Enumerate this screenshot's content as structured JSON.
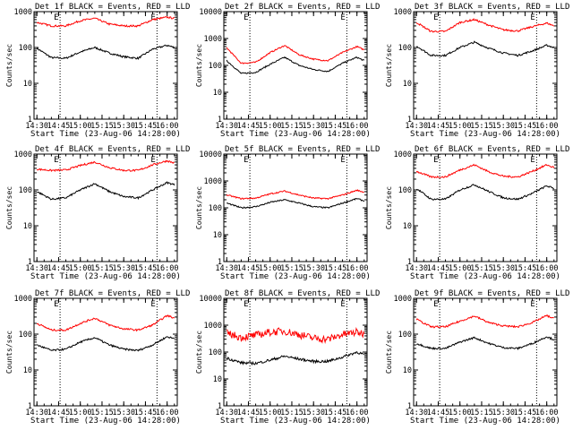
{
  "colors": {
    "events": "#000000",
    "lld": "#ff0000",
    "axes": "#000000",
    "background": "#ffffff"
  },
  "chart_data": [
    {
      "type": "line",
      "panel": 1,
      "title": "Det 1f BLACK = Events, RED = LLD",
      "xlabel": "Start Time (23-Aug-06 14:28:00)",
      "ylabel": "Counts/sec",
      "x_tick_labels": [
        "14:30",
        "14:45",
        "15:00",
        "15:15",
        "15:30",
        "15:45",
        "16:00"
      ],
      "y_tick_labels": [
        "1",
        "10",
        "100",
        "1000"
      ],
      "yscale": "log",
      "ylim": [
        1,
        1000
      ],
      "xlim": [
        "14:28",
        "16:07"
      ],
      "event_markers": [
        {
          "time": "14:46",
          "label": "E"
        },
        {
          "time": "15:53",
          "label": "E"
        }
      ],
      "x": [
        "14:30",
        "14:40",
        "14:50",
        "15:00",
        "15:10",
        "15:20",
        "15:30",
        "15:40",
        "15:50",
        "16:00",
        "16:05"
      ],
      "series": [
        {
          "color": "events",
          "values": [
            95,
            52,
            50,
            75,
            100,
            70,
            55,
            50,
            90,
            115,
            100
          ]
        },
        {
          "color": "lld",
          "values": [
            500,
            400,
            400,
            560,
            650,
            450,
            400,
            400,
            600,
            700,
            650
          ]
        }
      ]
    },
    {
      "type": "line",
      "panel": 2,
      "title": "Det 2f BLACK = Events, RED = LLD",
      "xlabel": "Start Time (23-Aug-06 14:28:00)",
      "ylabel": "Counts/sec",
      "x_tick_labels": [
        "14:30",
        "14:45",
        "15:00",
        "15:15",
        "15:30",
        "15:45",
        "16:00"
      ],
      "y_tick_labels": [
        "1",
        "10",
        "100",
        "1000",
        "10000"
      ],
      "yscale": "log",
      "ylim": [
        1,
        10000
      ],
      "xlim": [
        "14:28",
        "16:07"
      ],
      "event_markers": [
        {
          "time": "14:46",
          "label": "E"
        },
        {
          "time": "15:53",
          "label": "E"
        }
      ],
      "x": [
        "14:30",
        "14:40",
        "14:50",
        "15:00",
        "15:10",
        "15:20",
        "15:30",
        "15:40",
        "15:50",
        "16:00",
        "16:05"
      ],
      "series": [
        {
          "color": "events",
          "values": [
            150,
            50,
            55,
            110,
            200,
            100,
            70,
            60,
            120,
            200,
            150
          ]
        },
        {
          "color": "lld",
          "values": [
            450,
            120,
            130,
            300,
            550,
            250,
            170,
            150,
            300,
            500,
            380
          ]
        }
      ]
    },
    {
      "type": "line",
      "panel": 3,
      "title": "Det 3f BLACK = Events, RED = LLD",
      "xlabel": "Start Time (23-Aug-06 14:28:00)",
      "ylabel": "Counts/sec",
      "x_tick_labels": [
        "14:30",
        "14:45",
        "15:00",
        "15:15",
        "15:30",
        "15:45",
        "16:00"
      ],
      "y_tick_labels": [
        "1",
        "10",
        "100",
        "1000"
      ],
      "yscale": "log",
      "ylim": [
        1,
        1000
      ],
      "xlim": [
        "14:28",
        "16:07"
      ],
      "event_markers": [
        {
          "time": "14:46",
          "label": "E"
        },
        {
          "time": "15:53",
          "label": "E"
        }
      ],
      "x": [
        "14:30",
        "14:40",
        "14:50",
        "15:00",
        "15:10",
        "15:20",
        "15:30",
        "15:40",
        "15:50",
        "16:00",
        "16:05"
      ],
      "series": [
        {
          "color": "events",
          "values": [
            110,
            60,
            60,
            100,
            140,
            95,
            70,
            60,
            80,
            115,
            100
          ]
        },
        {
          "color": "lld",
          "values": [
            500,
            280,
            280,
            500,
            600,
            420,
            310,
            290,
            380,
            480,
            400
          ]
        }
      ]
    },
    {
      "type": "line",
      "panel": 4,
      "title": "Det 4f BLACK = Events, RED = LLD",
      "xlabel": "Start Time (23-Aug-06 14:28:00)",
      "ylabel": "Counts/sec",
      "x_tick_labels": [
        "14:30",
        "14:45",
        "15:00",
        "15:15",
        "15:30",
        "15:45",
        "16:00"
      ],
      "y_tick_labels": [
        "1",
        "10",
        "100",
        "1000"
      ],
      "yscale": "log",
      "ylim": [
        1,
        1000
      ],
      "xlim": [
        "14:28",
        "16:07"
      ],
      "event_markers": [
        {
          "time": "14:46",
          "label": "E"
        },
        {
          "time": "15:53",
          "label": "E"
        }
      ],
      "x": [
        "14:30",
        "14:40",
        "14:50",
        "15:00",
        "15:10",
        "15:20",
        "15:30",
        "15:40",
        "15:50",
        "16:00",
        "16:05"
      ],
      "series": [
        {
          "color": "events",
          "values": [
            90,
            55,
            60,
            100,
            150,
            90,
            65,
            60,
            100,
            160,
            140
          ]
        },
        {
          "color": "lld",
          "values": [
            380,
            350,
            360,
            480,
            600,
            420,
            350,
            350,
            500,
            650,
            560
          ]
        }
      ]
    },
    {
      "type": "line",
      "panel": 5,
      "title": "Det 5f BLACK = Events, RED = LLD",
      "xlabel": "Start Time (23-Aug-06 14:28:00)",
      "ylabel": "Counts/sec",
      "x_tick_labels": [
        "14:30",
        "14:45",
        "15:00",
        "15:15",
        "15:30",
        "15:45",
        "16:00"
      ],
      "y_tick_labels": [
        "1",
        "10",
        "100",
        "1000",
        "10000"
      ],
      "yscale": "log",
      "ylim": [
        1,
        10000
      ],
      "xlim": [
        "14:28",
        "16:07"
      ],
      "event_markers": [
        {
          "time": "14:46",
          "label": "E"
        },
        {
          "time": "15:53",
          "label": "E"
        }
      ],
      "x": [
        "14:30",
        "14:40",
        "14:50",
        "15:00",
        "15:10",
        "15:20",
        "15:30",
        "15:40",
        "15:50",
        "16:00",
        "16:05"
      ],
      "series": [
        {
          "color": "events",
          "values": [
            150,
            100,
            110,
            160,
            200,
            150,
            110,
            100,
            150,
            220,
            180
          ]
        },
        {
          "color": "lld",
          "values": [
            300,
            220,
            230,
            330,
            420,
            300,
            230,
            220,
            300,
            450,
            380
          ]
        }
      ]
    },
    {
      "type": "line",
      "panel": 6,
      "title": "Det 6f BLACK = Events, RED = LLD",
      "xlabel": "Start Time (23-Aug-06 14:28:00)",
      "ylabel": "Counts/sec",
      "x_tick_labels": [
        "14:30",
        "14:45",
        "15:00",
        "15:15",
        "15:30",
        "15:45",
        "16:00"
      ],
      "y_tick_labels": [
        "1",
        "10",
        "100",
        "1000"
      ],
      "yscale": "log",
      "ylim": [
        1,
        1000
      ],
      "xlim": [
        "14:28",
        "16:07"
      ],
      "event_markers": [
        {
          "time": "14:46",
          "label": "E"
        },
        {
          "time": "15:53",
          "label": "E"
        }
      ],
      "x": [
        "14:30",
        "14:40",
        "14:50",
        "15:00",
        "15:10",
        "15:20",
        "15:30",
        "15:40",
        "15:50",
        "16:00",
        "16:05"
      ],
      "series": [
        {
          "color": "events",
          "values": [
            110,
            55,
            55,
            100,
            140,
            90,
            60,
            55,
            80,
            130,
            110
          ]
        },
        {
          "color": "lld",
          "values": [
            330,
            230,
            230,
            360,
            500,
            320,
            240,
            230,
            330,
            500,
            420
          ]
        }
      ]
    },
    {
      "type": "line",
      "panel": 7,
      "title": "Det 7f BLACK = Events, RED = LLD",
      "xlabel": "Start Time (23-Aug-06 14:28:00)",
      "ylabel": "Counts/sec",
      "x_tick_labels": [
        "14:30",
        "14:45",
        "15:00",
        "15:15",
        "15:30",
        "15:45",
        "16:00"
      ],
      "y_tick_labels": [
        "1",
        "10",
        "100",
        "1000"
      ],
      "yscale": "log",
      "ylim": [
        1,
        1000
      ],
      "xlim": [
        "14:28",
        "16:07"
      ],
      "event_markers": [
        {
          "time": "14:46",
          "label": "E"
        },
        {
          "time": "15:53",
          "label": "E"
        }
      ],
      "x": [
        "14:30",
        "14:40",
        "14:50",
        "15:00",
        "15:10",
        "15:20",
        "15:30",
        "15:40",
        "15:50",
        "16:00",
        "16:05"
      ],
      "series": [
        {
          "color": "events",
          "values": [
            50,
            35,
            38,
            60,
            80,
            50,
            38,
            35,
            50,
            85,
            75
          ]
        },
        {
          "color": "lld",
          "values": [
            200,
            130,
            130,
            200,
            280,
            180,
            140,
            130,
            180,
            330,
            280
          ]
        }
      ]
    },
    {
      "type": "line",
      "panel": 8,
      "title": "Det 8f BLACK = Events, RED = LLD",
      "xlabel": "Start Time (23-Aug-06 14:28:00)",
      "ylabel": "Counts/sec",
      "x_tick_labels": [
        "14:30",
        "14:45",
        "15:00",
        "15:15",
        "15:30",
        "15:45",
        "16:00"
      ],
      "y_tick_labels": [
        "1",
        "10",
        "100",
        "1000",
        "10000"
      ],
      "yscale": "log",
      "ylim": [
        1,
        10000
      ],
      "xlim": [
        "14:28",
        "16:07"
      ],
      "event_markers": [
        {
          "time": "14:46",
          "label": "E"
        },
        {
          "time": "15:53",
          "label": "E"
        }
      ],
      "x": [
        "14:30",
        "14:40",
        "14:50",
        "15:00",
        "15:10",
        "15:20",
        "15:30",
        "15:40",
        "15:50",
        "16:00",
        "16:05"
      ],
      "series": [
        {
          "color": "events",
          "values": [
            60,
            40,
            38,
            50,
            70,
            55,
            45,
            45,
            65,
            100,
            80
          ]
        },
        {
          "color": "lld",
          "values": [
            500,
            350,
            420,
            550,
            600,
            450,
            330,
            300,
            450,
            550,
            480
          ]
        }
      ]
    },
    {
      "type": "line",
      "panel": 9,
      "title": "Det 9f BLACK = Events, RED = LLD",
      "xlabel": "Start Time (23-Aug-06 14:28:00)",
      "ylabel": "Counts/sec",
      "x_tick_labels": [
        "14:30",
        "14:45",
        "15:00",
        "15:15",
        "15:30",
        "15:45",
        "16:00"
      ],
      "y_tick_labels": [
        "1",
        "10",
        "100",
        "1000"
      ],
      "yscale": "log",
      "ylim": [
        1,
        1000
      ],
      "xlim": [
        "14:28",
        "16:07"
      ],
      "event_markers": [
        {
          "time": "14:46",
          "label": "E"
        },
        {
          "time": "15:53",
          "label": "E"
        }
      ],
      "x": [
        "14:30",
        "14:40",
        "14:50",
        "15:00",
        "15:10",
        "15:20",
        "15:30",
        "15:40",
        "15:50",
        "16:00",
        "16:05"
      ],
      "series": [
        {
          "color": "events",
          "values": [
            55,
            40,
            40,
            60,
            80,
            55,
            42,
            40,
            55,
            85,
            70
          ]
        },
        {
          "color": "lld",
          "values": [
            260,
            160,
            160,
            230,
            320,
            210,
            170,
            160,
            210,
            330,
            270
          ]
        }
      ]
    }
  ]
}
